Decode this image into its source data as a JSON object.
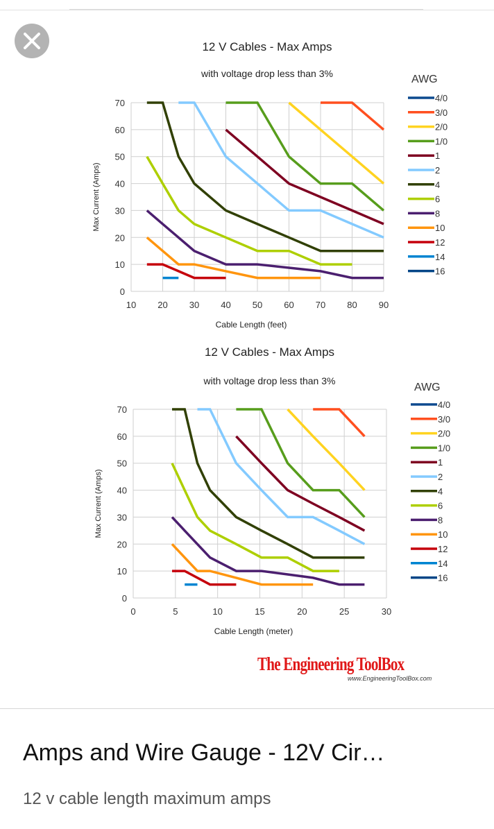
{
  "close_button": {
    "icon": "close-icon"
  },
  "chart_data": [
    {
      "type": "line",
      "title": "12 V Cables -  Max Amps",
      "subtitle": "with voltage drop less than 3%",
      "xlabel": "Cable Length (feet)",
      "ylabel": "Max Current (Amps)",
      "xlim": [
        10,
        90
      ],
      "ylim": [
        0,
        70
      ],
      "xticks": [
        "10",
        "20",
        "30",
        "40",
        "50",
        "60",
        "70",
        "80",
        "90"
      ],
      "yticks": [
        "0",
        "10",
        "20",
        "30",
        "40",
        "50",
        "60",
        "70"
      ],
      "grid": true,
      "legend_title": "AWG",
      "legend_position": "right",
      "series": [
        {
          "name": "4/0",
          "color": "#0d4a8f",
          "points": []
        },
        {
          "name": "3/0",
          "color": "#ff4f1f",
          "points": [
            [
              70,
              70
            ],
            [
              80,
              70
            ],
            [
              90,
              60
            ]
          ]
        },
        {
          "name": "2/0",
          "color": "#ffd320",
          "points": [
            [
              60,
              70
            ],
            [
              70,
              60
            ],
            [
              80,
              50
            ],
            [
              90,
              40
            ]
          ]
        },
        {
          "name": "1/0",
          "color": "#579d1c",
          "points": [
            [
              40,
              70
            ],
            [
              50,
              70
            ],
            [
              60,
              50
            ],
            [
              70,
              40
            ],
            [
              80,
              40
            ],
            [
              90,
              30
            ]
          ]
        },
        {
          "name": "1",
          "color": "#7e0021",
          "points": [
            [
              40,
              60
            ],
            [
              50,
              50
            ],
            [
              60,
              40
            ],
            [
              70,
              35
            ],
            [
              80,
              30
            ],
            [
              90,
              25
            ]
          ]
        },
        {
          "name": "2",
          "color": "#83caff",
          "points": [
            [
              25,
              70
            ],
            [
              30,
              70
            ],
            [
              40,
              50
            ],
            [
              50,
              40
            ],
            [
              60,
              30
            ],
            [
              70,
              30
            ],
            [
              80,
              25
            ],
            [
              90,
              20
            ]
          ]
        },
        {
          "name": "4",
          "color": "#314004",
          "points": [
            [
              15,
              70
            ],
            [
              20,
              70
            ],
            [
              25,
              50
            ],
            [
              30,
              40
            ],
            [
              40,
              30
            ],
            [
              50,
              25
            ],
            [
              60,
              20
            ],
            [
              70,
              15
            ],
            [
              80,
              15
            ],
            [
              90,
              15
            ]
          ]
        },
        {
          "name": "6",
          "color": "#aecf00",
          "points": [
            [
              15,
              50
            ],
            [
              20,
              40
            ],
            [
              25,
              30
            ],
            [
              30,
              25
            ],
            [
              40,
              20
            ],
            [
              50,
              15
            ],
            [
              60,
              15
            ],
            [
              70,
              10
            ],
            [
              80,
              10
            ]
          ]
        },
        {
          "name": "8",
          "color": "#4b1f6f",
          "points": [
            [
              15,
              30
            ],
            [
              20,
              25
            ],
            [
              30,
              15
            ],
            [
              40,
              10
            ],
            [
              50,
              10
            ],
            [
              60,
              8.75
            ],
            [
              70,
              7.5
            ],
            [
              80,
              5
            ],
            [
              90,
              5
            ]
          ]
        },
        {
          "name": "10",
          "color": "#ff950e",
          "points": [
            [
              15,
              20
            ],
            [
              20,
              15
            ],
            [
              25,
              10
            ],
            [
              30,
              10
            ],
            [
              40,
              7.5
            ],
            [
              50,
              5
            ],
            [
              60,
              5
            ],
            [
              70,
              5
            ]
          ]
        },
        {
          "name": "12",
          "color": "#c5000b",
          "points": [
            [
              15,
              10
            ],
            [
              20,
              10
            ],
            [
              30,
              5
            ],
            [
              40,
              5
            ]
          ]
        },
        {
          "name": "14",
          "color": "#0084d1",
          "points": [
            [
              20,
              5
            ],
            [
              25,
              5
            ]
          ]
        },
        {
          "name": "16",
          "color": "#004586",
          "points": []
        }
      ]
    },
    {
      "type": "line",
      "title": "12 V Cables -  Max Amps",
      "subtitle": "with voltage drop less than 3%",
      "xlabel": "Cable Length (meter)",
      "ylabel": "Max Current (Amps)",
      "xlim": [
        0,
        30
      ],
      "ylim": [
        0,
        70
      ],
      "xticks": [
        "0",
        "5",
        "10",
        "15",
        "20",
        "25",
        "30"
      ],
      "yticks": [
        "0",
        "10",
        "20",
        "30",
        "40",
        "50",
        "60",
        "70"
      ],
      "grid": true,
      "legend_title": "AWG",
      "legend_position": "right",
      "series": [
        {
          "name": "4/0",
          "color": "#0d4a8f",
          "points": []
        },
        {
          "name": "3/0",
          "color": "#ff4f1f",
          "points": [
            [
              21.3,
              70
            ],
            [
              24.4,
              70
            ],
            [
              27.4,
              60
            ]
          ]
        },
        {
          "name": "2/0",
          "color": "#ffd320",
          "points": [
            [
              18.3,
              70
            ],
            [
              21.3,
              60
            ],
            [
              24.4,
              50
            ],
            [
              27.4,
              40
            ]
          ]
        },
        {
          "name": "1/0",
          "color": "#579d1c",
          "points": [
            [
              12.2,
              70
            ],
            [
              15.2,
              70
            ],
            [
              18.3,
              50
            ],
            [
              21.3,
              40
            ],
            [
              24.4,
              40
            ],
            [
              27.4,
              30
            ]
          ]
        },
        {
          "name": "1",
          "color": "#7e0021",
          "points": [
            [
              12.2,
              60
            ],
            [
              15.2,
              50
            ],
            [
              18.3,
              40
            ],
            [
              21.3,
              35
            ],
            [
              24.4,
              30
            ],
            [
              27.4,
              25
            ]
          ]
        },
        {
          "name": "2",
          "color": "#83caff",
          "points": [
            [
              7.6,
              70
            ],
            [
              9.1,
              70
            ],
            [
              12.2,
              50
            ],
            [
              15.2,
              40
            ],
            [
              18.3,
              30
            ],
            [
              21.3,
              30
            ],
            [
              24.4,
              25
            ],
            [
              27.4,
              20
            ]
          ]
        },
        {
          "name": "4",
          "color": "#314004",
          "points": [
            [
              4.6,
              70
            ],
            [
              6.1,
              70
            ],
            [
              7.6,
              50
            ],
            [
              9.1,
              40
            ],
            [
              12.2,
              30
            ],
            [
              15.2,
              25
            ],
            [
              18.3,
              20
            ],
            [
              21.3,
              15
            ],
            [
              24.4,
              15
            ],
            [
              27.4,
              15
            ]
          ]
        },
        {
          "name": "6",
          "color": "#aecf00",
          "points": [
            [
              4.6,
              50
            ],
            [
              6.1,
              40
            ],
            [
              7.6,
              30
            ],
            [
              9.1,
              25
            ],
            [
              12.2,
              20
            ],
            [
              15.2,
              15
            ],
            [
              18.3,
              15
            ],
            [
              21.3,
              10
            ],
            [
              24.4,
              10
            ]
          ]
        },
        {
          "name": "8",
          "color": "#4b1f6f",
          "points": [
            [
              4.6,
              30
            ],
            [
              6.1,
              25
            ],
            [
              9.1,
              15
            ],
            [
              12.2,
              10
            ],
            [
              15.2,
              10
            ],
            [
              18.3,
              8.75
            ],
            [
              21.3,
              7.5
            ],
            [
              24.4,
              5
            ],
            [
              27.4,
              5
            ]
          ]
        },
        {
          "name": "10",
          "color": "#ff950e",
          "points": [
            [
              4.6,
              20
            ],
            [
              6.1,
              15
            ],
            [
              7.6,
              10
            ],
            [
              9.1,
              10
            ],
            [
              12.2,
              7.5
            ],
            [
              15.2,
              5
            ],
            [
              18.3,
              5
            ],
            [
              21.3,
              5
            ]
          ]
        },
        {
          "name": "12",
          "color": "#c5000b",
          "points": [
            [
              4.6,
              10
            ],
            [
              6.1,
              10
            ],
            [
              9.1,
              5
            ],
            [
              12.2,
              5
            ]
          ]
        },
        {
          "name": "14",
          "color": "#0084d1",
          "points": [
            [
              6.1,
              5
            ],
            [
              7.6,
              5
            ]
          ]
        },
        {
          "name": "16",
          "color": "#004586",
          "points": []
        }
      ]
    }
  ],
  "brand": {
    "name": "The Engineering ToolBox",
    "url": "www.EngineeringToolBox.com"
  },
  "result": {
    "title": "Amps and Wire Gauge - 12V Cir…",
    "description": "12 v cable length maximum amps"
  }
}
